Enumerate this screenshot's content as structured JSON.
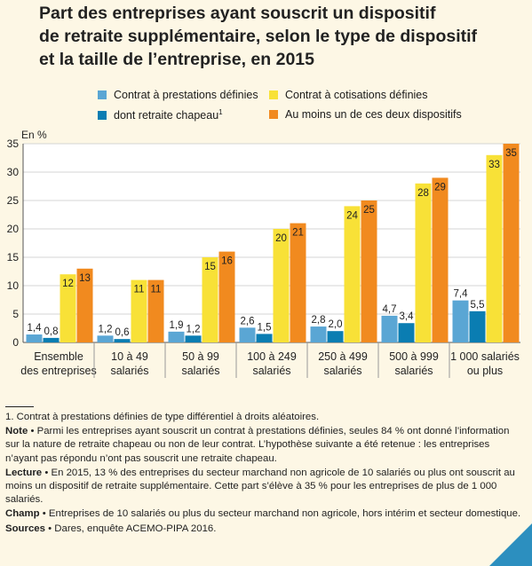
{
  "title_lines": [
    "Part des entreprises ayant souscrit un dispositif",
    "de retraite supplémentaire, selon le type de dispositif",
    "et la taille de l’entreprise, en 2015"
  ],
  "colors": {
    "prestations": "#5aa6d4",
    "chapeau": "#0a7db2",
    "cotisations": "#f8e137",
    "au_moins": "#f18a1f",
    "background": "#fdf7e5",
    "corner": "#2c8fbf"
  },
  "chart_data": {
    "type": "bar",
    "title": "Part des entreprises ayant souscrit un dispositif de retraite supplémentaire, selon le type de dispositif et la taille de l’entreprise, en 2015",
    "ylabel": "En %",
    "ylim": [
      0,
      35
    ],
    "yticks": [
      0,
      5,
      10,
      15,
      20,
      25,
      30,
      35
    ],
    "grid": true,
    "legend_position": "top",
    "categories": [
      [
        "Ensemble",
        "des entreprises"
      ],
      [
        "10 à 49",
        "salariés"
      ],
      [
        "50 à 99",
        "salariés"
      ],
      [
        "100 à 249",
        "salariés"
      ],
      [
        "250 à 499",
        "salariés"
      ],
      [
        "500 à 999",
        "salariés"
      ],
      [
        "1 000 salariés",
        "ou plus"
      ]
    ],
    "series": [
      {
        "name": "Contrat à prestations définies",
        "values": [
          1.4,
          1.2,
          1.9,
          2.6,
          2.8,
          4.7,
          7.4
        ],
        "labels": [
          "1,4",
          "1,2",
          "1,9",
          "2,6",
          "2,8",
          "4,7",
          "7,4"
        ],
        "color": "#5aa6d4"
      },
      {
        "name": "dont retraite chapeau",
        "name_sup": "1",
        "values": [
          0.8,
          0.6,
          1.2,
          1.5,
          2.0,
          3.4,
          5.5
        ],
        "labels": [
          "0,8",
          "0,6",
          "1,2",
          "1,5",
          "2,0",
          "3,4",
          "5,5"
        ],
        "color": "#0a7db2"
      },
      {
        "name": "Contrat à cotisations définies",
        "values": [
          12,
          11,
          15,
          20,
          24,
          28,
          33
        ],
        "labels": [
          "12",
          "11",
          "15",
          "20",
          "24",
          "28",
          "33"
        ],
        "color": "#f8e137"
      },
      {
        "name": "Au moins un de ces deux dispositifs",
        "values": [
          13,
          11,
          16,
          21,
          25,
          29,
          35
        ],
        "labels": [
          "13",
          "11",
          "16",
          "21",
          "25",
          "29",
          "35"
        ],
        "color": "#f18a1f"
      }
    ]
  },
  "notes": {
    "footnote": "1. Contrat à prestations définies de type différentiel à droits aléatoires.",
    "note_label": "Note",
    "note_text": " • Parmi les entreprises ayant souscrit un contrat à prestations définies, seules 84 % ont donné l’information sur la nature de retraite chapeau ou non de leur contrat. L’hypothèse suivante a été retenue : les entreprises n’ayant pas répondu n’ont pas souscrit une retraite chapeau.",
    "lecture_label": "Lecture",
    "lecture_text": " • En 2015, 13 % des entreprises du secteur marchand non agricole de 10 salariés ou plus ont souscrit au moins un dispositif de retraite supplémentaire. Cette part s’élève à 35 % pour les entreprises de plus de 1 000 salariés.",
    "champ_label": "Champ",
    "champ_text": " • Entreprises de 10 salariés ou plus du secteur marchand non agricole, hors intérim et secteur domestique.",
    "sources_label": "Sources",
    "sources_text": " • Dares, enquête ACEMO-PIPA 2016."
  }
}
